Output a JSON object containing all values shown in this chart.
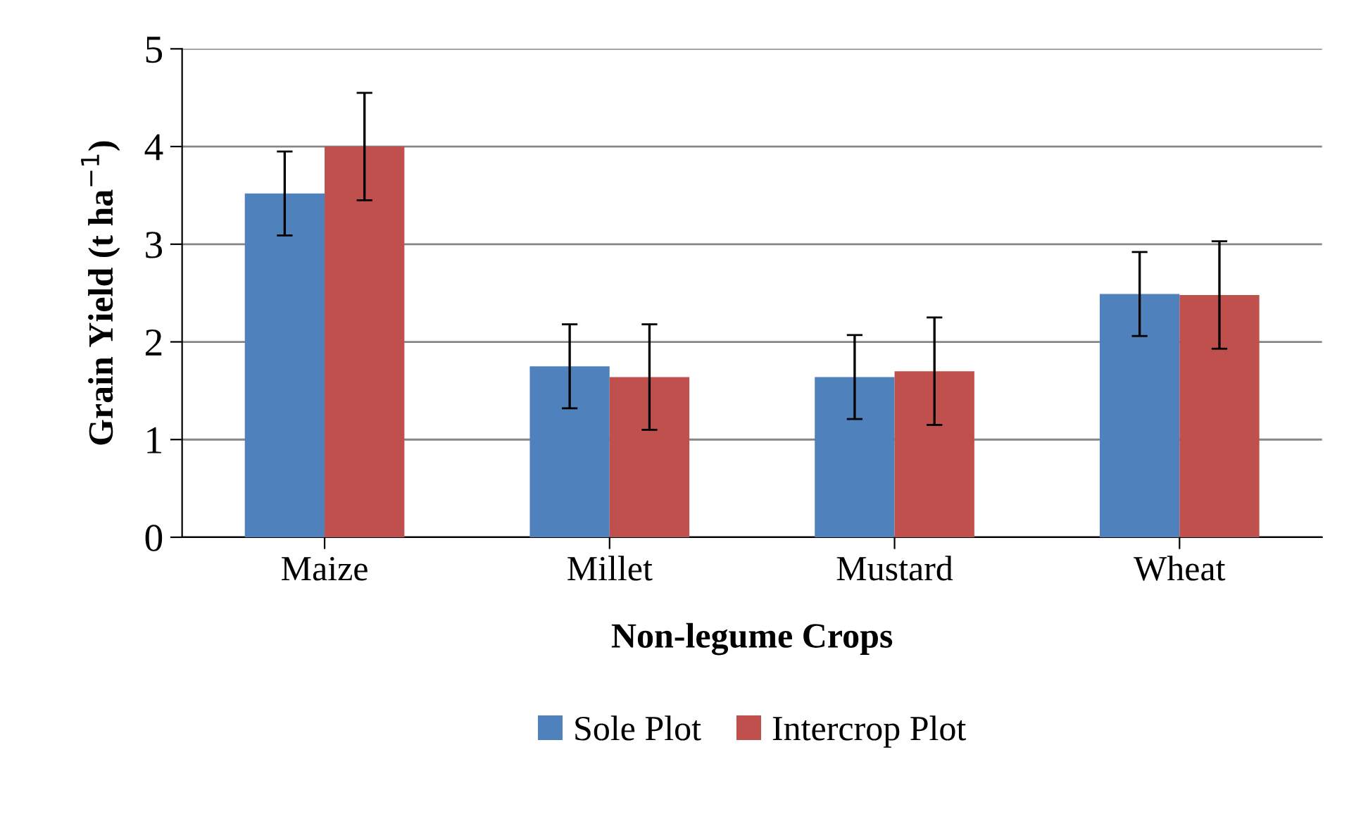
{
  "chart_data": {
    "type": "bar",
    "xlabel": "Non-legume Crops",
    "ylabel": "Grain Yield (t ha$^{−1}$)",
    "categories": [
      "Maize",
      "Millet",
      "Mustard",
      "Wheat"
    ],
    "series": [
      {
        "name": "Sole Plot",
        "color": "#4f81bd",
        "values": [
          3.52,
          1.75,
          1.64,
          2.49
        ],
        "errors": [
          0.43,
          0.43,
          0.43,
          0.43
        ]
      },
      {
        "name": "Intercrop Plot",
        "color": "#c0504d",
        "values": [
          4.0,
          1.64,
          1.7,
          2.48
        ],
        "errors": [
          0.55,
          0.54,
          0.55,
          0.55
        ]
      }
    ],
    "ylim": [
      0,
      5
    ],
    "yticks": [
      0,
      1,
      2,
      3,
      4,
      5
    ],
    "grid": "y",
    "legend": "bottom"
  }
}
